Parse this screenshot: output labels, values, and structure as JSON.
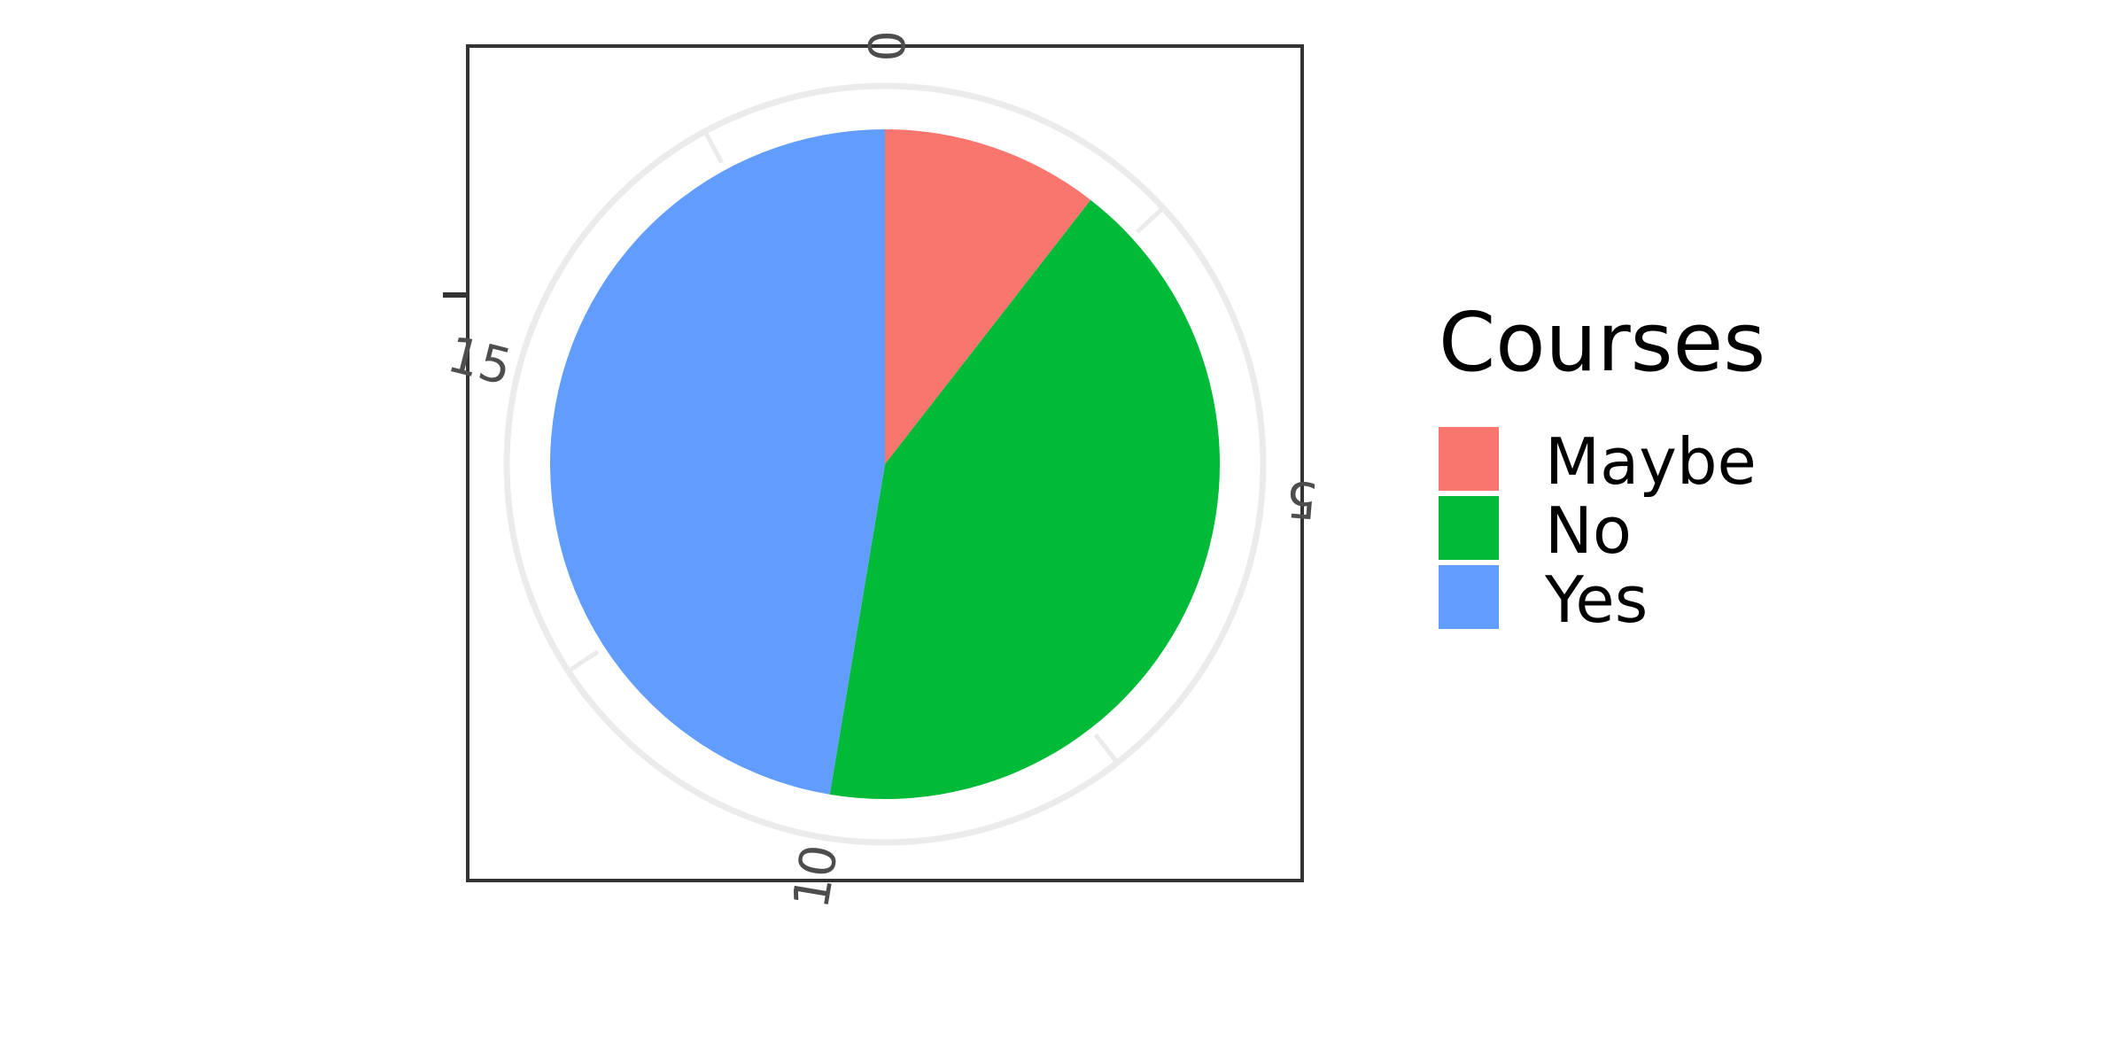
{
  "chart_data": {
    "type": "pie",
    "legend_title": "Courses",
    "legend_position": "right",
    "slices": [
      {
        "label": "Maybe",
        "value": 2,
        "color": "#F8766D"
      },
      {
        "label": "No",
        "value": 8,
        "color": "#00BA38"
      },
      {
        "label": "Yes",
        "value": 9,
        "color": "#619CFF"
      }
    ],
    "total": 19,
    "angular_axis": {
      "ticks": [
        {
          "value": 0,
          "label": "0"
        },
        {
          "value": 5,
          "label": "5"
        },
        {
          "value": 10,
          "label": "10"
        },
        {
          "value": 15,
          "label": "15"
        }
      ],
      "minor_ticks": [
        2.5,
        7.5,
        12.5,
        17.5
      ],
      "direction": "clockwise",
      "start": "top"
    },
    "grid": true,
    "panel_border": true
  }
}
